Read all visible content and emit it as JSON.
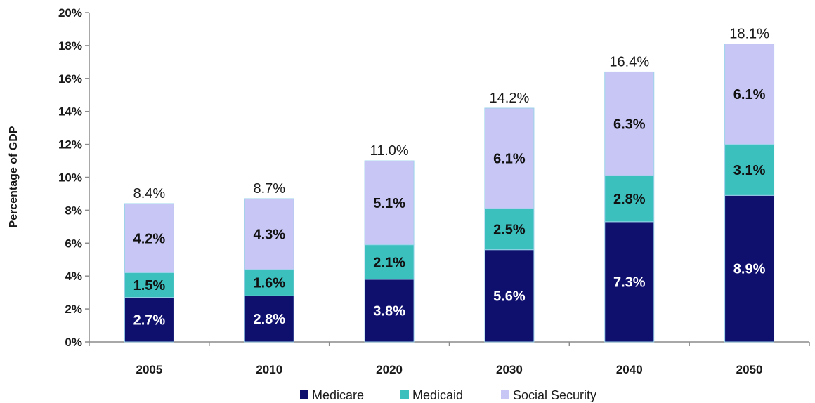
{
  "chart_data": {
    "type": "bar",
    "stacked": true,
    "categories": [
      "2005",
      "2010",
      "2020",
      "2030",
      "2040",
      "2050"
    ],
    "series": [
      {
        "name": "Medicare",
        "color": "#0f0f6e",
        "label_color": "#ffffff",
        "values": [
          2.7,
          2.8,
          3.8,
          5.6,
          7.3,
          8.9
        ],
        "labels": [
          "2.7%",
          "2.8%",
          "3.8%",
          "5.6%",
          "7.3%",
          "8.9%"
        ]
      },
      {
        "name": "Medicaid",
        "color": "#3cc0be",
        "label_color": "#111111",
        "values": [
          1.5,
          1.6,
          2.1,
          2.5,
          2.8,
          3.1
        ],
        "labels": [
          "1.5%",
          "1.6%",
          "2.1%",
          "2.5%",
          "2.8%",
          "3.1%"
        ]
      },
      {
        "name": "Social Security",
        "color": "#c8c6f4",
        "label_color": "#111111",
        "values": [
          4.2,
          4.3,
          5.1,
          6.1,
          6.3,
          6.1
        ],
        "labels": [
          "4.2%",
          "4.3%",
          "5.1%",
          "6.1%",
          "6.3%",
          "6.1%"
        ]
      }
    ],
    "totals": [
      8.4,
      8.7,
      11.0,
      14.2,
      16.4,
      18.1
    ],
    "total_labels": [
      "8.4%",
      "8.7%",
      "11.0%",
      "14.2%",
      "16.4%",
      "18.1%"
    ],
    "ylabel": "Percentage of GDP",
    "xlabel": "",
    "title": "",
    "ylim": [
      0,
      20
    ],
    "ytick_values": [
      0,
      2,
      4,
      6,
      8,
      10,
      12,
      14,
      16,
      18,
      20
    ],
    "ytick_labels": [
      "0%",
      "2%",
      "4%",
      "6%",
      "8%",
      "10%",
      "12%",
      "14%",
      "16%",
      "18%",
      "20%"
    ],
    "grid": false,
    "legend_position": "bottom"
  }
}
